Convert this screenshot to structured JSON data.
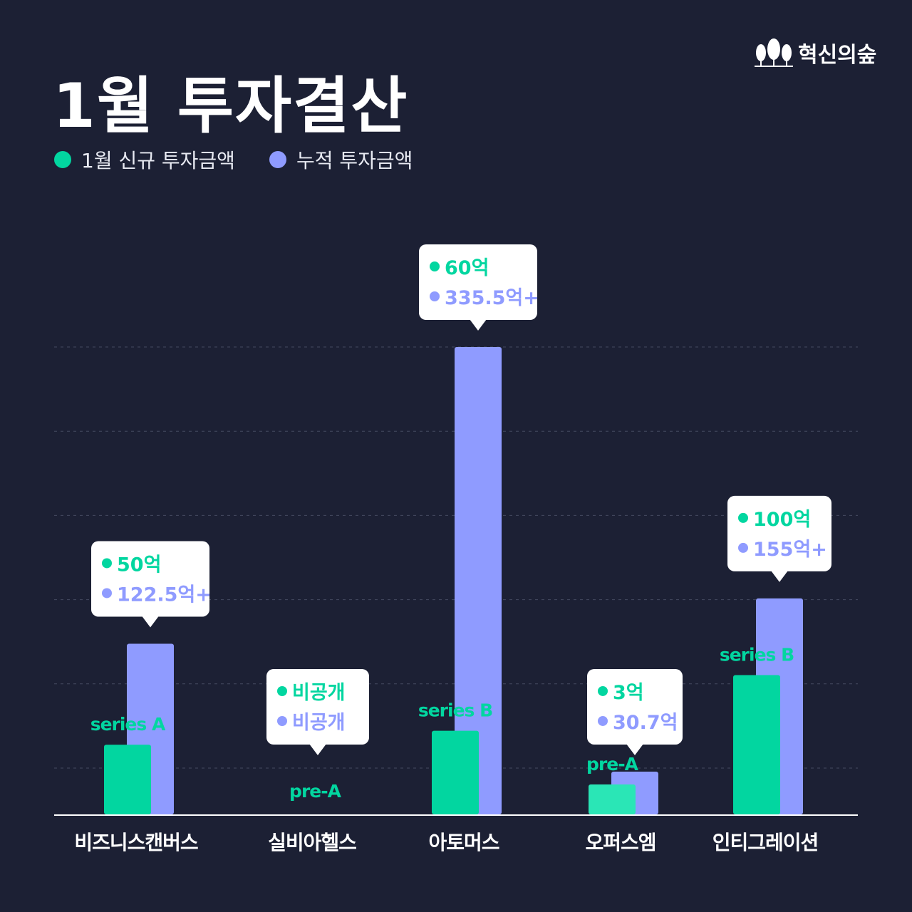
{
  "title": "1월 투자결산",
  "brand": {
    "name": "혁신의숲",
    "logo_icon": "forest-trees-icon"
  },
  "colors": {
    "background": "#1c2034",
    "new": "#02d6a0",
    "new_light": "#2ae6b6",
    "cumulative": "#8f9bff",
    "grid": "#444a60",
    "axis": "#ffffff"
  },
  "chart_data": {
    "type": "bar",
    "title": "1월 투자결산",
    "xlabel": "",
    "ylabel": "",
    "ylim": [
      0,
      335.5
    ],
    "grid": true,
    "legend_placement": "top-left",
    "categories": [
      "비즈니스캔버스",
      "실비아헬스",
      "아토머스",
      "오퍼스엠",
      "인티그레이션"
    ],
    "series": [
      {
        "name": "1월 신규 투자금액",
        "values": [
          50,
          null,
          60,
          3,
          100
        ],
        "labels": [
          "50억",
          "비공개",
          "60억",
          "3억",
          "100억"
        ]
      },
      {
        "name": "누적 투자금액",
        "values": [
          122.5,
          null,
          335.5,
          30.7,
          155
        ],
        "labels": [
          "122.5억+",
          "비공개",
          "335.5억+",
          "30.7억",
          "155억+"
        ]
      }
    ],
    "rounds": [
      "series A",
      "pre-A",
      "series B",
      "pre-A",
      "series B"
    ]
  }
}
